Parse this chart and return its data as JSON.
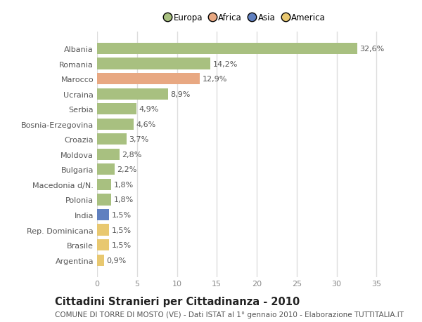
{
  "categories": [
    "Albania",
    "Romania",
    "Marocco",
    "Ucraina",
    "Serbia",
    "Bosnia-Erzegovina",
    "Croazia",
    "Moldova",
    "Bulgaria",
    "Macedonia d/N.",
    "Polonia",
    "India",
    "Rep. Dominicana",
    "Brasile",
    "Argentina"
  ],
  "values": [
    32.6,
    14.2,
    12.9,
    8.9,
    4.9,
    4.6,
    3.7,
    2.8,
    2.2,
    1.8,
    1.8,
    1.5,
    1.5,
    1.5,
    0.9
  ],
  "labels": [
    "32,6%",
    "14,2%",
    "12,9%",
    "8,9%",
    "4,9%",
    "4,6%",
    "3,7%",
    "2,8%",
    "2,2%",
    "1,8%",
    "1,8%",
    "1,5%",
    "1,5%",
    "1,5%",
    "0,9%"
  ],
  "continents": [
    "Europa",
    "Europa",
    "Africa",
    "Europa",
    "Europa",
    "Europa",
    "Europa",
    "Europa",
    "Europa",
    "Europa",
    "Europa",
    "Asia",
    "America",
    "America",
    "America"
  ],
  "colors": {
    "Europa": "#a8c080",
    "Africa": "#e8a882",
    "Asia": "#6080c0",
    "America": "#e8c870"
  },
  "xlim": [
    0,
    37
  ],
  "xticks": [
    0,
    5,
    10,
    15,
    20,
    25,
    30,
    35
  ],
  "title": "Cittadini Stranieri per Cittadinanza - 2010",
  "subtitle": "COMUNE DI TORRE DI MOSTO (VE) - Dati ISTAT al 1° gennaio 2010 - Elaborazione TUTTITALIA.IT",
  "background_color": "#ffffff",
  "plot_bg_color": "#ffffff",
  "grid_color": "#dddddd",
  "bar_height": 0.75,
  "label_fontsize": 8,
  "tick_fontsize": 8,
  "title_fontsize": 10.5,
  "subtitle_fontsize": 7.5,
  "legend_fontsize": 8.5
}
